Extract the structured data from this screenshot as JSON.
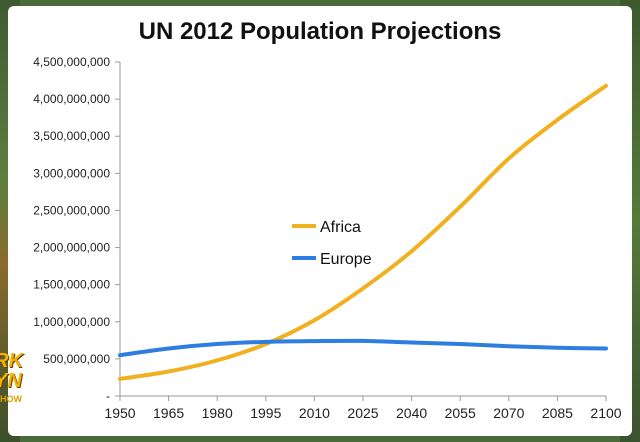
{
  "chart_data": {
    "type": "line",
    "title": "UN 2012 Population Projections",
    "xlabel": "",
    "ylabel": "",
    "ylim": [
      0,
      4500000000
    ],
    "x_ticks": [
      "1950",
      "1965",
      "1980",
      "1995",
      "2010",
      "2025",
      "2040",
      "2055",
      "2070",
      "2085",
      "2100"
    ],
    "y_ticks": [
      "-",
      "500,000,000",
      "1,000,000,000",
      "1,500,000,000",
      "2,000,000,000",
      "2,500,000,000",
      "3,000,000,000",
      "3,500,000,000",
      "4,000,000,000",
      "4,500,000,000"
    ],
    "x": [
      1950,
      1965,
      1980,
      1995,
      2010,
      2025,
      2040,
      2055,
      2070,
      2085,
      2100
    ],
    "series": [
      {
        "name": "Africa",
        "color": "#F0B020",
        "values": [
          230000000,
          330000000,
          480000000,
          700000000,
          1020000000,
          1450000000,
          1950000000,
          2550000000,
          3200000000,
          3720000000,
          4180000000
        ]
      },
      {
        "name": "Europe",
        "color": "#2E7DE0",
        "values": [
          550000000,
          640000000,
          700000000,
          730000000,
          740000000,
          742000000,
          720000000,
          700000000,
          670000000,
          650000000,
          640000000
        ]
      }
    ],
    "legend_position": "center",
    "grid": false
  },
  "logo": {
    "line1": "RK",
    "line2": "YN",
    "line3": "SHOW"
  }
}
